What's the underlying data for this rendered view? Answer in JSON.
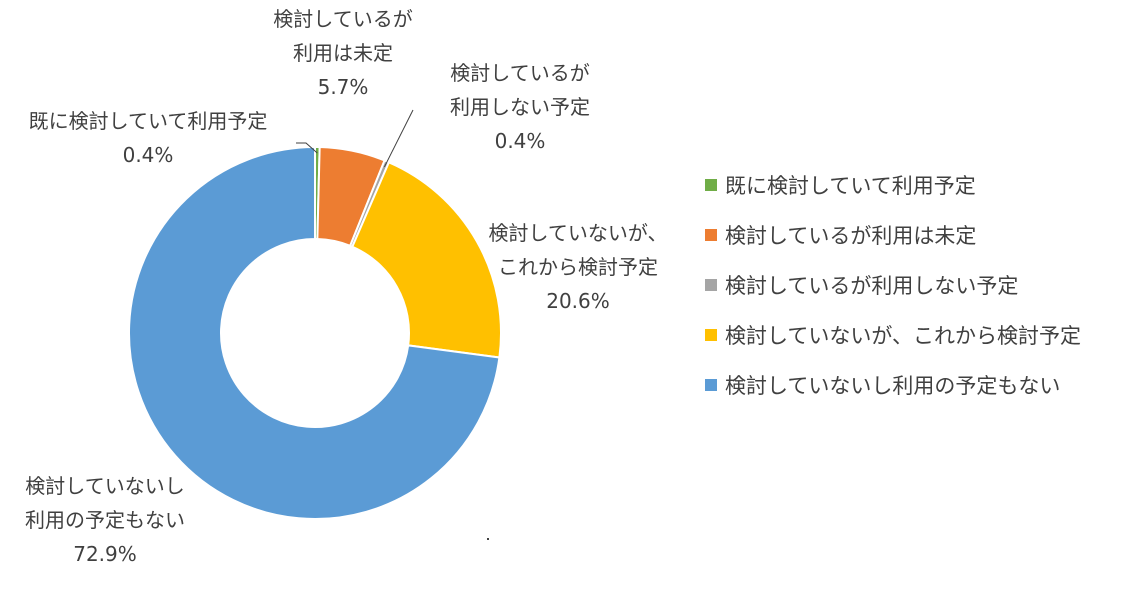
{
  "chart_data": {
    "type": "pie",
    "donut": true,
    "slices": [
      {
        "name": "既に検討していて利用予定",
        "value": 0.4,
        "value_label": "0.4%",
        "label_lines": [
          "既に検討していて利用予定"
        ],
        "color": "#70AD47"
      },
      {
        "name": "検討しているが利用は未定",
        "value": 5.7,
        "value_label": "5.7%",
        "label_lines": [
          "検討しているが",
          "利用は未定"
        ],
        "color": "#ED7D31"
      },
      {
        "name": "検討しているが利用しない予定",
        "value": 0.4,
        "value_label": "0.4%",
        "label_lines": [
          "検討しているが",
          "利用しない予定"
        ],
        "color": "#A5A5A5"
      },
      {
        "name": "検討していないが、これから検討予定",
        "value": 20.6,
        "value_label": "20.6%",
        "label_lines": [
          "検討していないが、",
          "これから検討予定"
        ],
        "color": "#FFC000"
      },
      {
        "name": "検討していないし利用の予定もない",
        "value": 72.9,
        "value_label": "72.9%",
        "label_lines": [
          "検討していないし",
          "利用の予定もない"
        ],
        "color": "#5B9BD5"
      }
    ],
    "legend": {
      "placement": "right",
      "items": [
        "既に検討していて利用予定",
        "検討しているが利用は未定",
        "検討しているが利用しない予定",
        "検討していないが、これから検討予定",
        "検討していないし利用の予定もない"
      ]
    }
  }
}
